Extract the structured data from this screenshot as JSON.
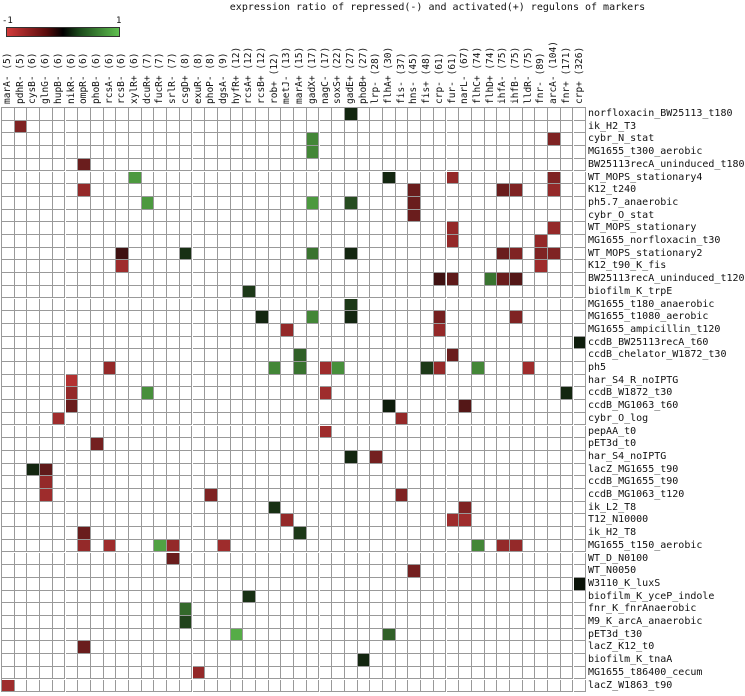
{
  "chart_data": {
    "type": "heatmap",
    "title": "expression ratio of repressed(-) and activated(+) regulons of markers",
    "colorbar": {
      "min_label": "-1",
      "max_label": "1",
      "min": -1,
      "max": 1,
      "low_color": "#d33a3a",
      "mid_color": "#000000",
      "high_color": "#5fbf4f"
    },
    "columns": [
      "marA- (5)",
      "pdhR- (5)",
      "cysB- (6)",
      "glnG- (6)",
      "hupB- (6)",
      "nikR- (6)",
      "ompR- (6)",
      "phoB- (6)",
      "rcsA- (6)",
      "rcsB- (6)",
      "xylR+ (6)",
      "dcuR+ (7)",
      "fucR+ (7)",
      "srlR- (7)",
      "csgD+ (8)",
      "exuR- (8)",
      "phoP- (8)",
      "dgsA- (9)",
      "hyfR+ (12)",
      "rcsA+ (12)",
      "rcsB+ (12)",
      "rob+ (12)",
      "metJ- (13)",
      "marA+ (15)",
      "gadX+ (17)",
      "nagC- (17)",
      "soxS+ (22)",
      "gadE+ (27)",
      "phoB+ (27)",
      "lrp- (28)",
      "flhA+ (30)",
      "fis- (37)",
      "hns- (45)",
      "fis+ (48)",
      "crp- (61)",
      "fur- (61)",
      "narL- (67)",
      "flhC+ (74)",
      "flhD+ (74)",
      "ihfA- (75)",
      "ihfB- (75)",
      "lldR- (75)",
      "fnr- (89)",
      "arcA- (104)",
      "fnr+ (171)",
      "crp+ (326)"
    ],
    "rows": [
      "norfloxacin_BW25113_t180",
      "ik_H2_T3",
      "cybr_N_stat",
      "MG1655_t300_aerobic",
      "BW25113recA_uninduced_t180",
      "WT_MOPS_stationary4",
      "K12_t240",
      "ph5.7_anaerobic",
      "cybr_O_stat",
      "WT_MOPS_stationary",
      "MG1655_norfloxacin_t30",
      "WT_MOPS_stationary2",
      "K12_t90_K_fis",
      "BW25113recA_uninduced_t120",
      "biofilm_K_trpE",
      "MG1655_t180_anaerobic",
      "MG1655_t1080_aerobic",
      "MG1655_ampicillin_t120",
      "ccdB_BW25113recA_t60",
      "ccdB_chelator_W1872_t30",
      "ph5",
      "har_S4_R_noIPTG",
      "ccdB_W1872_t30",
      "ccdB_MG1063_t60",
      "cybr_O_log",
      "pepAA_t0",
      "pET3d_t0",
      "har_S4_noIPTG",
      "lacZ_MG1655_t90",
      "ccdB_MG1655_t90",
      "ccdB_MG1063_t120",
      "ik_L2_T8",
      "T12_N10000",
      "ik_H2_T8",
      "MG1655_t150_aerobic",
      "WT_D_N0100",
      "WT_N0050",
      "W3110_K_luxS",
      "biofilm_K_yceP_indole",
      "fnr_K_fnrAnaerobic",
      "M9_K_arcA_anaerobic",
      "pET3d_t30",
      "lacZ_K12_t0",
      "biofilm_K_tnaA",
      "MG1655_t86400_cecum",
      "lacZ_W1863_t90"
    ],
    "cells": [
      [
        0,
        27,
        0.2
      ],
      [
        1,
        1,
        -0.6
      ],
      [
        2,
        24,
        0.7
      ],
      [
        2,
        43,
        -0.6
      ],
      [
        3,
        24,
        0.7
      ],
      [
        4,
        6,
        -0.5
      ],
      [
        5,
        10,
        0.8
      ],
      [
        5,
        30,
        0.2
      ],
      [
        5,
        35,
        -0.7
      ],
      [
        5,
        43,
        -0.6
      ],
      [
        6,
        6,
        -0.7
      ],
      [
        6,
        32,
        -0.5
      ],
      [
        6,
        39,
        -0.5
      ],
      [
        6,
        40,
        -0.6
      ],
      [
        6,
        43,
        -0.7
      ],
      [
        7,
        11,
        0.8
      ],
      [
        7,
        24,
        0.8
      ],
      [
        7,
        27,
        0.4
      ],
      [
        7,
        32,
        -0.5
      ],
      [
        8,
        32,
        -0.5
      ],
      [
        9,
        35,
        -0.7
      ],
      [
        9,
        43,
        -0.7
      ],
      [
        10,
        35,
        -0.7
      ],
      [
        10,
        42,
        -0.7
      ],
      [
        11,
        9,
        -0.3
      ],
      [
        11,
        14,
        0.25
      ],
      [
        11,
        24,
        0.6
      ],
      [
        11,
        27,
        0.2
      ],
      [
        11,
        39,
        -0.5
      ],
      [
        11,
        40,
        -0.6
      ],
      [
        11,
        42,
        -0.6
      ],
      [
        11,
        43,
        -0.6
      ],
      [
        12,
        9,
        -0.75
      ],
      [
        12,
        42,
        -0.75
      ],
      [
        13,
        34,
        -0.3
      ],
      [
        13,
        35,
        -0.45
      ],
      [
        13,
        38,
        0.6
      ],
      [
        13,
        39,
        -0.5
      ],
      [
        13,
        40,
        -0.4
      ],
      [
        14,
        19,
        0.3
      ],
      [
        15,
        27,
        0.3
      ],
      [
        16,
        20,
        0.2
      ],
      [
        16,
        24,
        0.7
      ],
      [
        16,
        27,
        0.2
      ],
      [
        16,
        34,
        -0.55
      ],
      [
        16,
        40,
        -0.6
      ],
      [
        17,
        22,
        -0.7
      ],
      [
        17,
        34,
        -0.7
      ],
      [
        18,
        45,
        0.15
      ],
      [
        19,
        23,
        0.5
      ],
      [
        19,
        35,
        -0.5
      ],
      [
        20,
        8,
        -0.7
      ],
      [
        20,
        21,
        0.7
      ],
      [
        20,
        23,
        0.6
      ],
      [
        20,
        25,
        -0.75
      ],
      [
        20,
        26,
        0.75
      ],
      [
        20,
        33,
        0.3
      ],
      [
        20,
        34,
        -0.7
      ],
      [
        20,
        37,
        0.7
      ],
      [
        20,
        41,
        -0.75
      ],
      [
        21,
        5,
        -0.85
      ],
      [
        22,
        5,
        -0.7
      ],
      [
        22,
        11,
        0.75
      ],
      [
        22,
        25,
        -0.75
      ],
      [
        22,
        44,
        0.2
      ],
      [
        23,
        5,
        -0.5
      ],
      [
        23,
        30,
        0.15
      ],
      [
        23,
        36,
        -0.4
      ],
      [
        24,
        4,
        -0.75
      ],
      [
        24,
        31,
        -0.7
      ],
      [
        25,
        25,
        -0.75
      ],
      [
        26,
        7,
        -0.55
      ],
      [
        27,
        27,
        0.2
      ],
      [
        27,
        29,
        -0.55
      ],
      [
        28,
        2,
        0.2
      ],
      [
        28,
        3,
        -0.45
      ],
      [
        29,
        3,
        -0.7
      ],
      [
        30,
        3,
        -0.75
      ],
      [
        30,
        16,
        -0.6
      ],
      [
        30,
        31,
        -0.6
      ],
      [
        31,
        21,
        0.25
      ],
      [
        31,
        36,
        -0.6
      ],
      [
        32,
        22,
        -0.7
      ],
      [
        32,
        35,
        -0.75
      ],
      [
        32,
        36,
        -0.75
      ],
      [
        33,
        6,
        -0.5
      ],
      [
        33,
        23,
        0.3
      ],
      [
        34,
        6,
        -0.7
      ],
      [
        34,
        8,
        -0.75
      ],
      [
        34,
        12,
        0.85
      ],
      [
        34,
        13,
        -0.7
      ],
      [
        34,
        17,
        -0.75
      ],
      [
        34,
        37,
        0.7
      ],
      [
        34,
        39,
        -0.7
      ],
      [
        34,
        40,
        -0.7
      ],
      [
        35,
        13,
        -0.5
      ],
      [
        36,
        32,
        -0.55
      ],
      [
        37,
        45,
        0.1
      ],
      [
        38,
        19,
        0.25
      ],
      [
        39,
        14,
        0.55
      ],
      [
        40,
        14,
        0.35
      ],
      [
        41,
        18,
        0.9
      ],
      [
        41,
        30,
        0.5
      ],
      [
        42,
        6,
        -0.5
      ],
      [
        43,
        28,
        0.2
      ],
      [
        44,
        15,
        -0.7
      ],
      [
        45,
        0,
        -0.75
      ]
    ],
    "grid": true,
    "legend_position": "top-left colorbar"
  }
}
